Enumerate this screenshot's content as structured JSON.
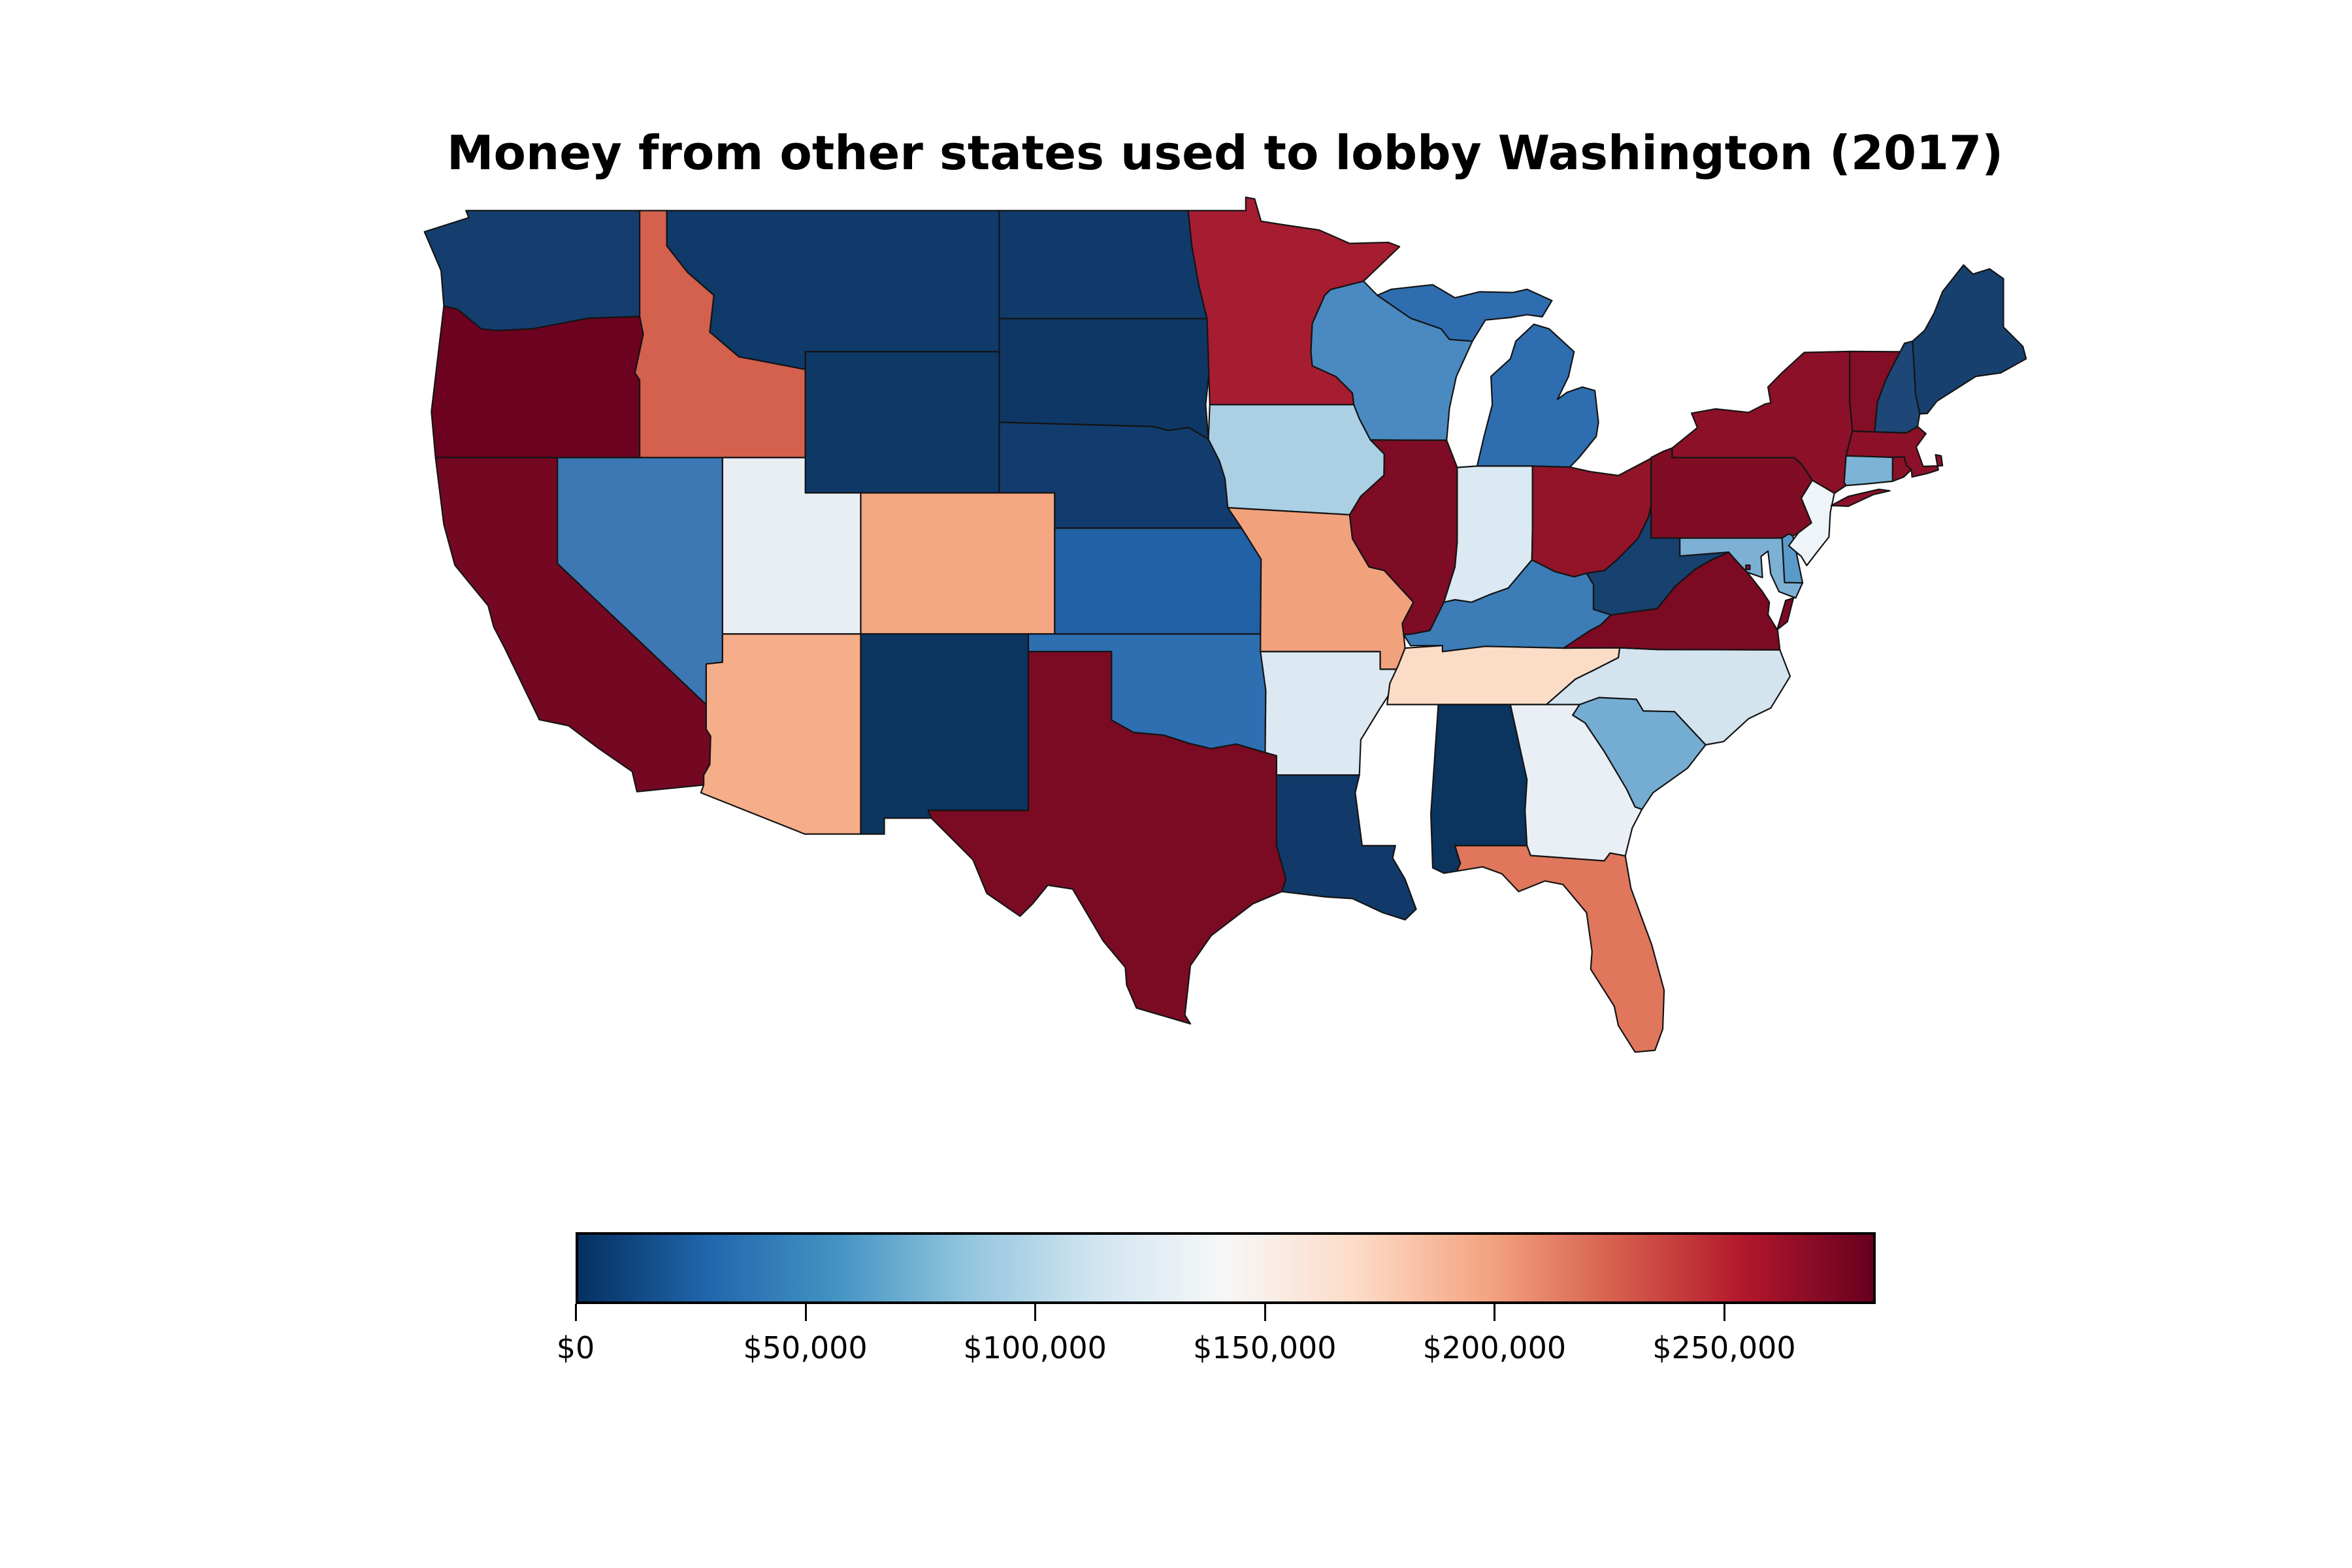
{
  "title": "Money from other states used to lobby Washington (2017)",
  "chart_data": {
    "type": "choropleth_map",
    "region": "United States (contiguous states + DC)",
    "unit": "USD",
    "background": "#ffffff",
    "note": "State values are estimated from fill colors against the colorbar scale; Mississippi is unfilled (appears white / no data).",
    "colormap": {
      "name": "RdBu_r",
      "stops": [
        "#053061",
        "#2166ac",
        "#4393c3",
        "#92c5de",
        "#d1e5f0",
        "#f7f7f7",
        "#fddbc7",
        "#f4a582",
        "#d6604d",
        "#b2182b",
        "#67001f"
      ]
    },
    "colorbar": {
      "min": 0,
      "max": 283000,
      "ticks": [
        {
          "label": "$0",
          "value": 0
        },
        {
          "label": "$50,000",
          "value": 50000
        },
        {
          "label": "$100,000",
          "value": 100000
        },
        {
          "label": "$150,000",
          "value": 150000
        },
        {
          "label": "$200,000",
          "value": 200000
        },
        {
          "label": "$250,000",
          "value": 250000
        }
      ]
    },
    "states": [
      {
        "abbr": "MS",
        "name": "Mississippi",
        "color": "#ffffff",
        "value_usd_est": null
      },
      {
        "abbr": "WA",
        "name": "Washington",
        "color": "#153e6f",
        "value_usd_est": 11000
      },
      {
        "abbr": "OR",
        "name": "Oregon",
        "color": "#6d0220",
        "value_usd_est": 280000
      },
      {
        "abbr": "CA",
        "name": "California",
        "color": "#740822",
        "value_usd_est": 276000
      },
      {
        "abbr": "NV",
        "name": "Nevada",
        "color": "#3d78b5",
        "value_usd_est": 48000
      },
      {
        "abbr": "ID",
        "name": "Idaho",
        "color": "#d4604e",
        "value_usd_est": 226000
      },
      {
        "abbr": "MT",
        "name": "Montana",
        "color": "#0f3a69",
        "value_usd_est": 8000
      },
      {
        "abbr": "WY",
        "name": "Wyoming",
        "color": "#0e3866",
        "value_usd_est": 6000
      },
      {
        "abbr": "UT",
        "name": "Utah",
        "color": "#e9eef3",
        "value_usd_est": 127000
      },
      {
        "abbr": "CO",
        "name": "Colorado",
        "color": "#f4a582",
        "value_usd_est": 198000
      },
      {
        "abbr": "AZ",
        "name": "Arizona",
        "color": "#f6ad89",
        "value_usd_est": 195000
      },
      {
        "abbr": "NM",
        "name": "New Mexico",
        "color": "#0c355f",
        "value_usd_est": 4000
      },
      {
        "abbr": "ND",
        "name": "North Dakota",
        "color": "#103a6a",
        "value_usd_est": 8000
      },
      {
        "abbr": "SD",
        "name": "South Dakota",
        "color": "#0e3765",
        "value_usd_est": 6000
      },
      {
        "abbr": "NE",
        "name": "Nebraska",
        "color": "#123c6d",
        "value_usd_est": 11000
      },
      {
        "abbr": "KS",
        "name": "Kansas",
        "color": "#2161a5",
        "value_usd_est": 33000
      },
      {
        "abbr": "OK",
        "name": "Oklahoma",
        "color": "#2e6fb2",
        "value_usd_est": 42000
      },
      {
        "abbr": "TX",
        "name": "Texas",
        "color": "#7a0b23",
        "value_usd_est": 273000
      },
      {
        "abbr": "MN",
        "name": "Minnesota",
        "color": "#a61c31",
        "value_usd_est": 258000
      },
      {
        "abbr": "IA",
        "name": "Iowa",
        "color": "#abd0e4",
        "value_usd_est": 93000
      },
      {
        "abbr": "MO",
        "name": "Missouri",
        "color": "#f2a17d",
        "value_usd_est": 201000
      },
      {
        "abbr": "AR",
        "name": "Arkansas",
        "color": "#dde9f2",
        "value_usd_est": 119000
      },
      {
        "abbr": "LA",
        "name": "Louisiana",
        "color": "#113a6a",
        "value_usd_est": 9000
      },
      {
        "abbr": "WI",
        "name": "Wisconsin",
        "color": "#4a8ac1",
        "value_usd_est": 59000
      },
      {
        "abbr": "MI",
        "name": "Michigan",
        "color": "#2e6db0",
        "value_usd_est": 42000
      },
      {
        "abbr": "IL",
        "name": "Illinois",
        "color": "#7d0c24",
        "value_usd_est": 272000
      },
      {
        "abbr": "IN",
        "name": "Indiana",
        "color": "#dbe9f2",
        "value_usd_est": 116000
      },
      {
        "abbr": "OH",
        "name": "Ohio",
        "color": "#921429",
        "value_usd_est": 263000
      },
      {
        "abbr": "KY",
        "name": "Kentucky",
        "color": "#3c7db8",
        "value_usd_est": 51000
      },
      {
        "abbr": "TN",
        "name": "Tennessee",
        "color": "#fbdcc7",
        "value_usd_est": 170000
      },
      {
        "abbr": "AL",
        "name": "Alabama",
        "color": "#0b345f",
        "value_usd_est": 3000
      },
      {
        "abbr": "GA",
        "name": "Georgia",
        "color": "#e9eff4",
        "value_usd_est": 127000
      },
      {
        "abbr": "FL",
        "name": "Florida",
        "color": "#e0775c",
        "value_usd_est": 216000
      },
      {
        "abbr": "SC",
        "name": "South Carolina",
        "color": "#75acd2",
        "value_usd_est": 73000
      },
      {
        "abbr": "NC",
        "name": "North Carolina",
        "color": "#d3e4ef",
        "value_usd_est": 109000
      },
      {
        "abbr": "VA",
        "name": "Virginia",
        "color": "#7c0a22",
        "value_usd_est": 272000
      },
      {
        "abbr": "WV",
        "name": "West Virginia",
        "color": "#17416f",
        "value_usd_est": 15000
      },
      {
        "abbr": "MD",
        "name": "Maryland",
        "color": "#7db0d5",
        "value_usd_est": 76000
      },
      {
        "abbr": "DE",
        "name": "Delaware",
        "color": "#5a9aca",
        "value_usd_est": 65000
      },
      {
        "abbr": "DC",
        "name": "District of Columbia",
        "color": "#8c1128",
        "value_usd_est": 265000
      },
      {
        "abbr": "NJ",
        "name": "New Jersey",
        "color": "#eef4f8",
        "value_usd_est": 133000
      },
      {
        "abbr": "PA",
        "name": "Pennsylvania",
        "color": "#800d24",
        "value_usd_est": 270000
      },
      {
        "abbr": "NY",
        "name": "New York",
        "color": "#8c1128",
        "value_usd_est": 265000
      },
      {
        "abbr": "CT",
        "name": "Connecticut",
        "color": "#7cb3d7",
        "value_usd_est": 76000
      },
      {
        "abbr": "RI",
        "name": "Rhode Island",
        "color": "#8c1128",
        "value_usd_est": 265000
      },
      {
        "abbr": "MA",
        "name": "Massachusetts",
        "color": "#8c1128",
        "value_usd_est": 265000
      },
      {
        "abbr": "VT",
        "name": "Vermont",
        "color": "#830e25",
        "value_usd_est": 269000
      },
      {
        "abbr": "NH",
        "name": "New Hampshire",
        "color": "#1e4677",
        "value_usd_est": 20000
      },
      {
        "abbr": "ME",
        "name": "Maine",
        "color": "#17406e",
        "value_usd_est": 14000
      }
    ]
  }
}
